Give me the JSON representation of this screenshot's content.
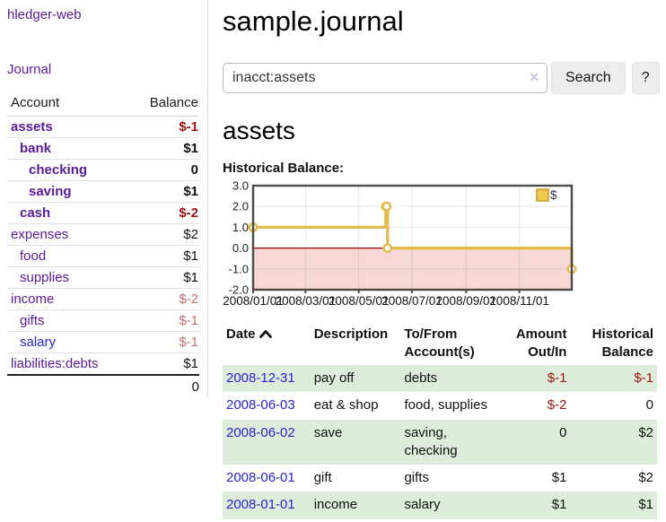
{
  "app": {
    "brand": "hledger-web",
    "nav_journal": "Journal"
  },
  "sidebar": {
    "col_account": "Account",
    "col_balance": "Balance",
    "accounts": [
      {
        "name": "assets",
        "balance": "$-1",
        "level": 1,
        "bold": true,
        "balance_style": "neg",
        "link_style": "purple"
      },
      {
        "name": "bank",
        "balance": "$1",
        "level": 2,
        "bold": true,
        "balance_style": "pos",
        "link_style": "purple"
      },
      {
        "name": "checking",
        "balance": "0",
        "level": 3,
        "bold": true,
        "balance_style": "pos",
        "link_style": "purple"
      },
      {
        "name": "saving",
        "balance": "$1",
        "level": 3,
        "bold": true,
        "balance_style": "pos",
        "link_style": "purple"
      },
      {
        "name": "cash",
        "balance": "$-2",
        "level": 2,
        "bold": true,
        "balance_style": "neg",
        "link_style": "purple"
      },
      {
        "name": "expenses",
        "balance": "$2",
        "level": 1,
        "bold": false,
        "balance_style": "pos",
        "link_style": "purple"
      },
      {
        "name": "food",
        "balance": "$1",
        "level": 2,
        "bold": false,
        "balance_style": "pos",
        "link_style": "purple"
      },
      {
        "name": "supplies",
        "balance": "$1",
        "level": 2,
        "bold": false,
        "balance_style": "pos",
        "link_style": "purple"
      },
      {
        "name": "income",
        "balance": "$-2",
        "level": 1,
        "bold": false,
        "balance_style": "neg-light",
        "link_style": "purple"
      },
      {
        "name": "gifts",
        "balance": "$-1",
        "level": 2,
        "bold": false,
        "balance_style": "neg-light",
        "link_style": "purple"
      },
      {
        "name": "salary",
        "balance": "$-1",
        "level": 2,
        "bold": false,
        "balance_style": "neg-light",
        "link_style": "blue"
      },
      {
        "name": "liabilities:debts",
        "balance": "$1",
        "level": 1,
        "bold": false,
        "balance_style": "pos",
        "link_style": "purple"
      }
    ],
    "total": "0"
  },
  "header": {
    "title": "sample.journal"
  },
  "search": {
    "value": "inacct:assets",
    "clear_icon": "✕",
    "button_label": "Search",
    "help_label": "?"
  },
  "account_page": {
    "heading": "assets",
    "chart_label": "Historical Balance:"
  },
  "chart_data": {
    "type": "line",
    "step": true,
    "title": "Historical Balance:",
    "series": [
      {
        "name": "$",
        "color": "#e3bb4a",
        "points": [
          [
            "2008-01-01",
            1
          ],
          [
            "2008-06-01",
            2
          ],
          [
            "2008-06-02",
            2
          ],
          [
            "2008-06-03",
            0
          ],
          [
            "2008-12-31",
            -1
          ]
        ]
      }
    ],
    "x_range": [
      "2008-01-01",
      "2008-12-31"
    ],
    "x_tick_dates": [
      "2008-01-01",
      "2008-03-01",
      "2008-05-01",
      "2008-07-01",
      "2008-09-01",
      "2008-11-01"
    ],
    "x_tick_labels": [
      "2008/01/01",
      "2008/03/01",
      "2008/05/01",
      "2008/07/01",
      "2008/09/01",
      "2008/11/01"
    ],
    "ylim": [
      -2,
      3
    ],
    "y_ticks": [
      3,
      2,
      1,
      0,
      -1,
      -2
    ],
    "y_tick_labels": [
      "3.0",
      "2.0",
      "1.0",
      "0.0",
      "-1.0",
      "-2.0"
    ],
    "legend": {
      "label": "$",
      "position": "top-right"
    },
    "grid": true,
    "colors": {
      "negative_fill": "#f8d7d7",
      "zero_line": "#8e0404",
      "grid": "#dddddd",
      "border": "#4b4b4b",
      "point_fill": "#ffffff"
    }
  },
  "register": {
    "columns": [
      {
        "label": "Date",
        "align": "left",
        "sorted": "asc"
      },
      {
        "label": "Description",
        "align": "left"
      },
      {
        "label": "To/From Account(s)",
        "align": "left"
      },
      {
        "label": "Amount Out/In",
        "align": "right"
      },
      {
        "label": "Historical Balance",
        "align": "right"
      }
    ],
    "rows": [
      {
        "date": "2008-12-31",
        "description": "pay off",
        "accounts": "debts",
        "amount": "$-1",
        "amount_negative": true,
        "balance": "$-1",
        "balance_negative": true
      },
      {
        "date": "2008-06-03",
        "description": "eat & shop",
        "accounts": "food, supplies",
        "amount": "$-2",
        "amount_negative": true,
        "balance": "0",
        "balance_negative": false
      },
      {
        "date": "2008-06-02",
        "description": "save",
        "accounts": "saving, checking",
        "amount": "0",
        "amount_negative": false,
        "balance": "$2",
        "balance_negative": false
      },
      {
        "date": "2008-06-01",
        "description": "gift",
        "accounts": "gifts",
        "amount": "$1",
        "amount_negative": false,
        "balance": "$2",
        "balance_negative": false
      },
      {
        "date": "2008-01-01",
        "description": "income",
        "accounts": "salary",
        "amount": "$1",
        "amount_negative": false,
        "balance": "$1",
        "balance_negative": false
      }
    ]
  }
}
